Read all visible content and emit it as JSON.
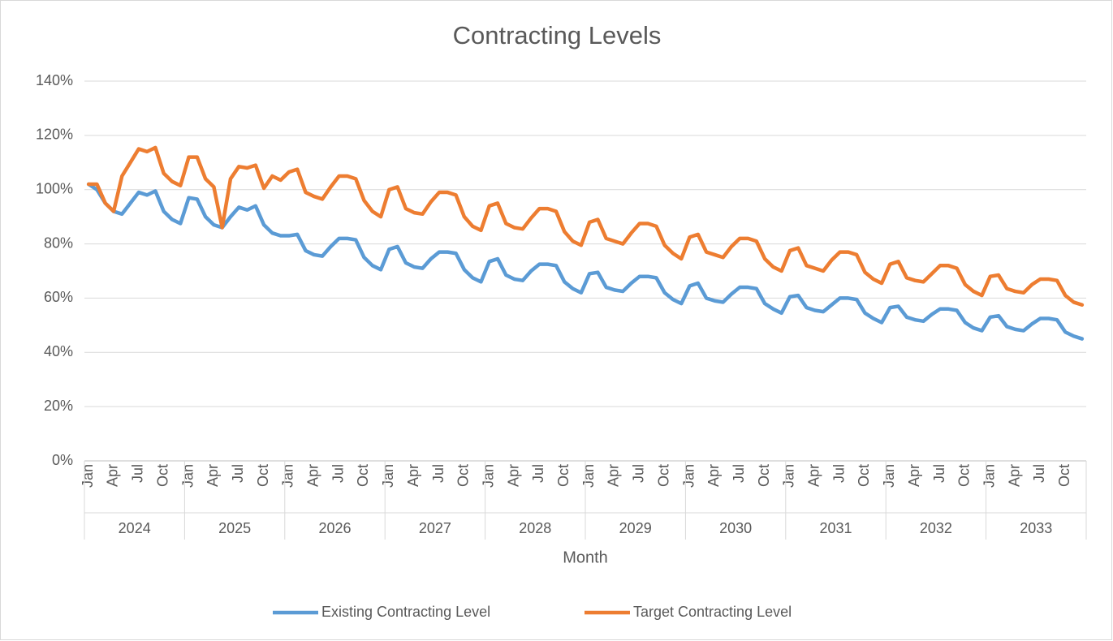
{
  "chart_data": {
    "type": "line",
    "title": "Contracting Levels",
    "x_label": "Month",
    "categories": [
      "Jan",
      null,
      null,
      "Apr",
      null,
      null,
      "Jul",
      null,
      null,
      "Oct",
      null,
      null,
      "Jan",
      null,
      null,
      "Apr",
      null,
      null,
      "Jul",
      null,
      null,
      "Oct",
      null,
      null,
      "Jan",
      null,
      null,
      "Apr",
      null,
      null,
      "Jul",
      null,
      null,
      "Oct",
      null,
      null,
      "Jan",
      null,
      null,
      "Apr",
      null,
      null,
      "Jul",
      null,
      null,
      "Oct",
      null,
      null,
      "Jan",
      null,
      null,
      "Apr",
      null,
      null,
      "Jul",
      null,
      null,
      "Oct",
      null,
      null,
      "Jan",
      null,
      null,
      "Apr",
      null,
      null,
      "Jul",
      null,
      null,
      "Oct",
      null,
      null,
      "Jan",
      null,
      null,
      "Apr",
      null,
      null,
      "Jul",
      null,
      null,
      "Oct",
      null,
      null,
      "Jan",
      null,
      null,
      "Apr",
      null,
      null,
      "Jul",
      null,
      null,
      "Oct",
      null,
      null,
      "Jan",
      null,
      null,
      "Apr",
      null,
      null,
      "Jul",
      null,
      null,
      "Oct",
      null,
      null,
      "Jan",
      null,
      null,
      "Apr",
      null,
      null,
      "Jul",
      null,
      null,
      "Oct",
      null,
      null
    ],
    "category_groups": [
      "2024",
      "2025",
      "2026",
      "2027",
      "2028",
      "2029",
      "2030",
      "2031",
      "2032",
      "2033"
    ],
    "series": [
      {
        "name": "Existing Contracting Level",
        "color": "#5b9bd5",
        "values": [
          102,
          100,
          95,
          92,
          91,
          95,
          99,
          98,
          99.5,
          92,
          89,
          87.5,
          97,
          96.5,
          90,
          87,
          86,
          90,
          93.5,
          92.5,
          94,
          87,
          84,
          83,
          83,
          83.5,
          77.5,
          76,
          75.5,
          79,
          82,
          82,
          81.5,
          75,
          72,
          70.5,
          78,
          79,
          73,
          71.5,
          71,
          74.5,
          77,
          77,
          76.5,
          70.5,
          67.5,
          66,
          73.5,
          74.5,
          68.5,
          67,
          66.5,
          70,
          72.5,
          72.5,
          72,
          66,
          63.5,
          62,
          69,
          69.5,
          64,
          63,
          62.5,
          65.5,
          68,
          68,
          67.5,
          62,
          59.5,
          58,
          64.5,
          65.5,
          60,
          59,
          58.5,
          61.5,
          64,
          64,
          63.5,
          58,
          56,
          54.5,
          60.5,
          61,
          56.5,
          55.5,
          55,
          57.5,
          60,
          60,
          59.5,
          54.5,
          52.5,
          51,
          56.5,
          57,
          53,
          52,
          51.5,
          54,
          56,
          56,
          55.5,
          51,
          49,
          48,
          53,
          53.5,
          49.5,
          48.5,
          48,
          50.5,
          52.5,
          52.5,
          52,
          47.5,
          46,
          45
        ]
      },
      {
        "name": "Target Contracting Level",
        "color": "#ed7d31",
        "values": [
          102,
          102,
          95,
          92,
          105,
          110,
          115,
          114,
          115.5,
          106,
          103,
          101.5,
          112,
          112,
          104,
          101,
          86,
          104,
          108.5,
          108,
          109,
          100.5,
          105,
          103.5,
          106.5,
          107.5,
          99,
          97.5,
          96.5,
          101,
          105,
          105,
          104,
          96,
          92,
          90,
          100,
          101,
          93,
          91.5,
          91,
          95.5,
          99,
          99,
          98,
          90,
          86.5,
          85,
          94,
          95,
          87.5,
          86,
          85.5,
          89.5,
          93,
          93,
          92,
          84.5,
          81,
          79.5,
          88,
          89,
          82,
          81,
          80,
          84,
          87.5,
          87.5,
          86.5,
          79.5,
          76.5,
          74.5,
          82.5,
          83.5,
          77,
          76,
          75,
          79,
          82,
          82,
          81,
          74.5,
          71.5,
          70,
          77.5,
          78.5,
          72,
          71,
          70,
          74,
          77,
          77,
          76,
          69.5,
          67,
          65.5,
          72.5,
          73.5,
          67.5,
          66.5,
          66,
          69,
          72,
          72,
          71,
          65,
          62.5,
          61,
          68,
          68.5,
          63.5,
          62.5,
          62,
          65,
          67,
          67,
          66.5,
          61,
          58.5,
          57.5
        ]
      }
    ],
    "ylim": [
      0,
      140
    ],
    "yticks": [
      {
        "value": 0,
        "label": "0%"
      },
      {
        "value": 20,
        "label": "20%"
      },
      {
        "value": 40,
        "label": "40%"
      },
      {
        "value": 60,
        "label": "60%"
      },
      {
        "value": 80,
        "label": "80%"
      },
      {
        "value": 100,
        "label": "100%"
      },
      {
        "value": 120,
        "label": "120%"
      },
      {
        "value": 140,
        "label": "140%"
      }
    ],
    "grid": true,
    "legend": "bottom"
  }
}
